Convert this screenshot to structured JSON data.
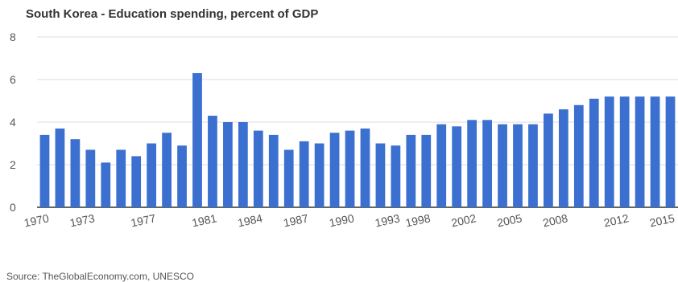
{
  "chart_data": {
    "type": "bar",
    "title": "South Korea - Education spending, percent of GDP",
    "source": "Source: TheGlobalEconomy.com, UNESCO",
    "xlabel": "",
    "ylabel": "",
    "ylim": [
      0,
      8
    ],
    "yticks": [
      0,
      2,
      4,
      6,
      8
    ],
    "grid": true,
    "legend": "none",
    "bar_color": "#3b6fd0",
    "categories": [
      "1970",
      "1971",
      "1972",
      "1973",
      "1974",
      "1975",
      "1976",
      "1977",
      "1978",
      "1979",
      "1980",
      "1981",
      "1982",
      "1983",
      "1984",
      "1985",
      "1986",
      "1987",
      "1988",
      "1989",
      "1990",
      "1991",
      "1992",
      "1993",
      "1994",
      "1998",
      "1999",
      "2000",
      "2002",
      "2003",
      "2004",
      "2005",
      "2006",
      "2007",
      "2008",
      "2009",
      "2010",
      "2011",
      "2012",
      "2013",
      "2014",
      "2015"
    ],
    "values": [
      3.4,
      3.7,
      3.2,
      2.7,
      2.1,
      2.7,
      2.4,
      3.0,
      3.5,
      2.9,
      6.3,
      4.3,
      4.0,
      4.0,
      3.6,
      3.4,
      2.7,
      3.1,
      3.0,
      3.5,
      3.6,
      3.7,
      3.0,
      2.9,
      3.4,
      3.4,
      3.9,
      3.8,
      4.1,
      4.1,
      3.9,
      3.9,
      3.9,
      4.4,
      4.6,
      4.8,
      5.1,
      5.2,
      5.2,
      5.2,
      5.2,
      5.2
    ],
    "x_tick_labels": [
      "1970",
      "1973",
      "1977",
      "1981",
      "1984",
      "1987",
      "1990",
      "1993",
      "1998",
      "2002",
      "2005",
      "2008",
      "2012",
      "2015"
    ]
  }
}
